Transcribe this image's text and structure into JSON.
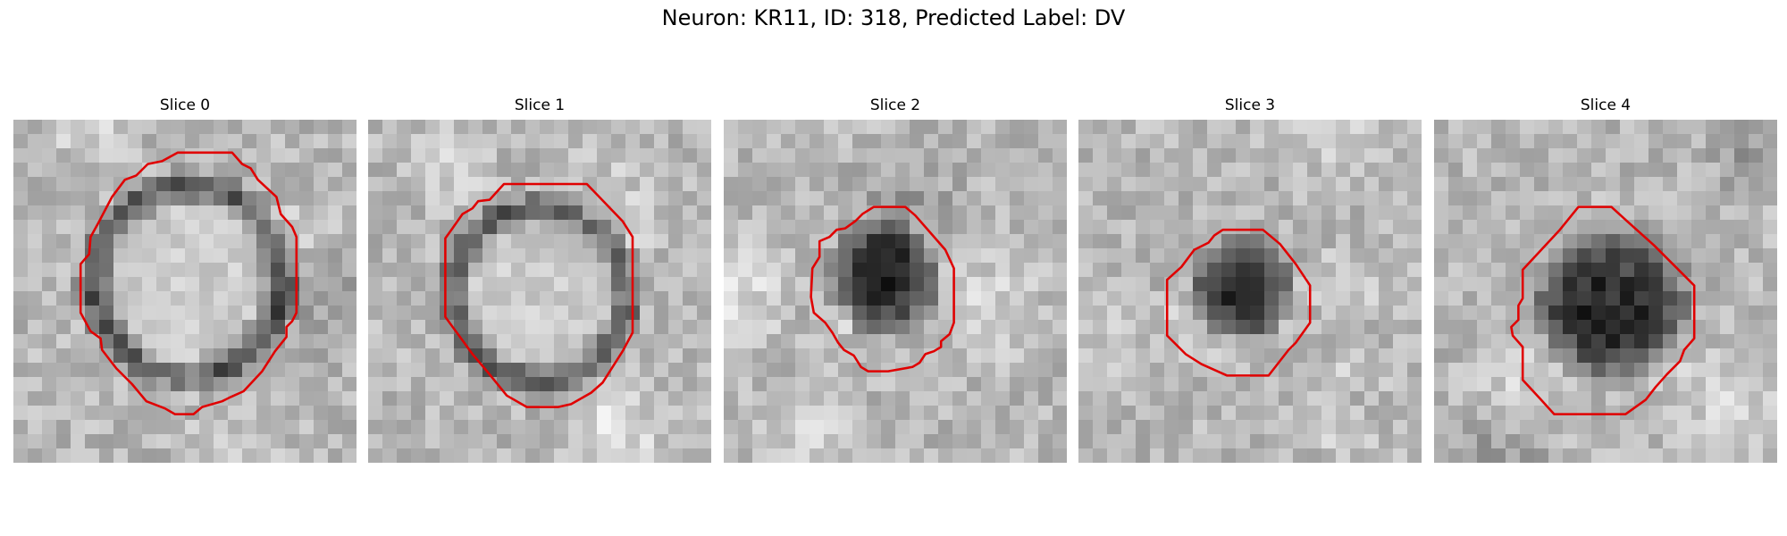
{
  "figure": {
    "title": "Neuron: KR11, ID: 318, Predicted Label: DV",
    "contour_color": "#e00000",
    "colormap": "gray",
    "panels": [
      {
        "title": "Slice 0",
        "blob": "ring"
      },
      {
        "title": "Slice 1",
        "blob": "ring-wide"
      },
      {
        "title": "Slice 2",
        "blob": "dark-small"
      },
      {
        "title": "Slice 3",
        "blob": "dark-offset"
      },
      {
        "title": "Slice 4",
        "blob": "dark-large"
      }
    ]
  }
}
